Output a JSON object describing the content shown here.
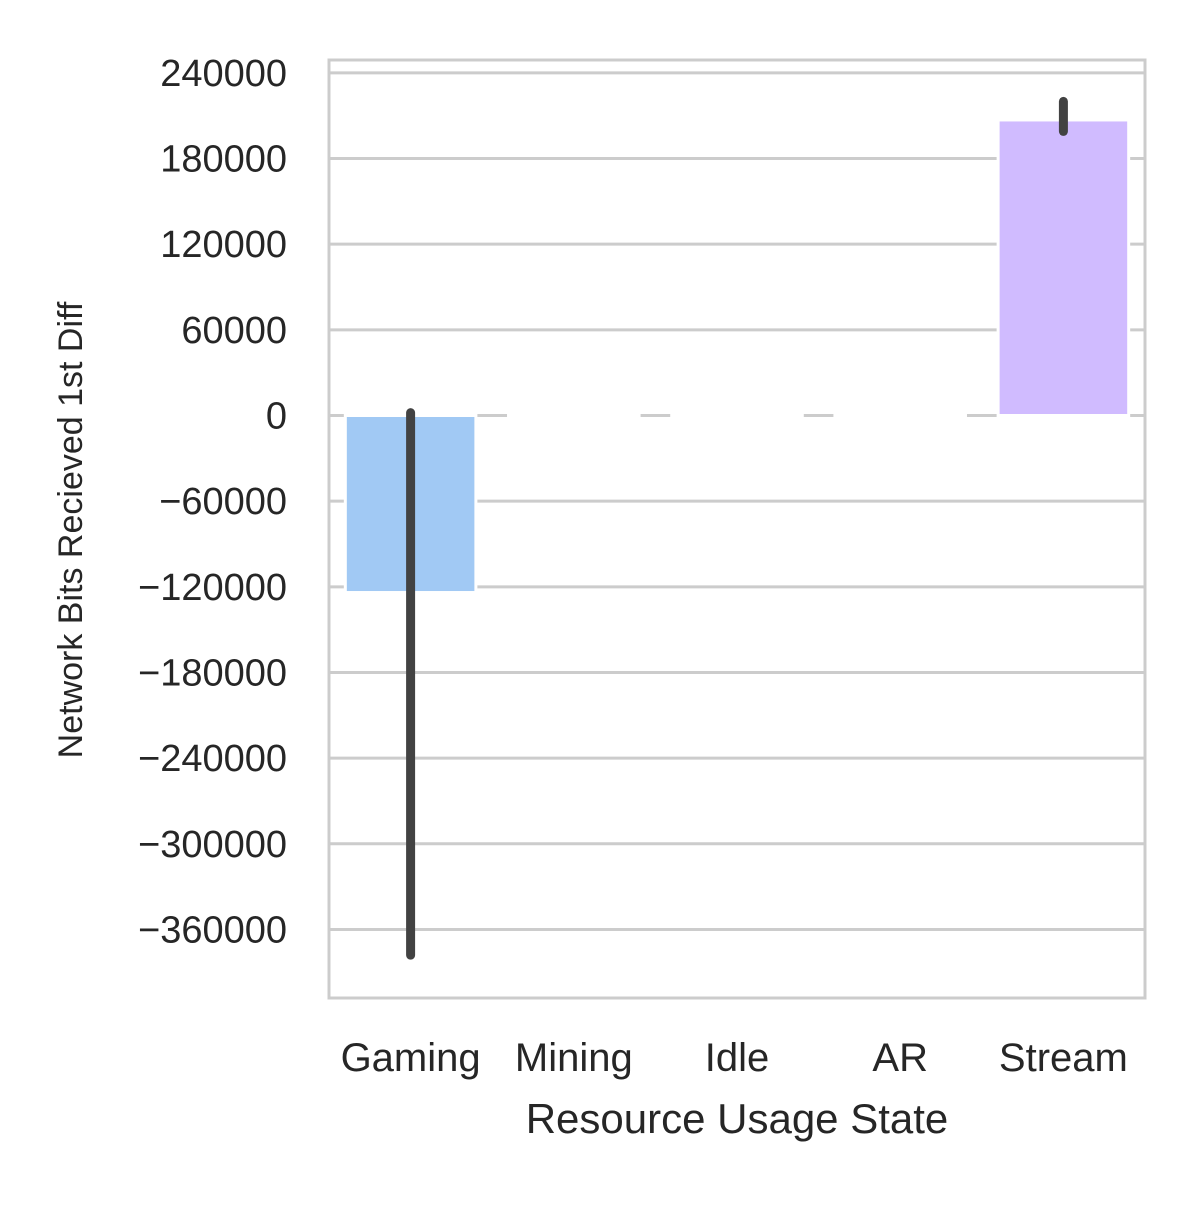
{
  "chart_data": {
    "type": "bar",
    "title": "",
    "xlabel": "Resource Usage State",
    "ylabel": "Network Bits Recieved 1st Diff",
    "categories": [
      "Gaming",
      "Mining",
      "Idle",
      "AR",
      "Stream"
    ],
    "values": [
      -124000,
      0,
      0,
      0,
      207000
    ],
    "error_bars": [
      {
        "low": -378000,
        "high": 2000
      },
      null,
      null,
      null,
      {
        "low": 199000,
        "high": 220000
      }
    ],
    "colors": [
      "#a1c9f4",
      "#8de5a1",
      "#ff9f9b",
      "#fffea3",
      "#d0bbff"
    ],
    "error_color": "#424242",
    "yticks": [
      240000,
      180000,
      120000,
      60000,
      0,
      -60000,
      -120000,
      -180000,
      -240000,
      -300000,
      -360000
    ],
    "ytick_labels": [
      "240000",
      "180000",
      "120000",
      "60000",
      "0",
      "−60000",
      "−120000",
      "−180000",
      "−240000",
      "−300000",
      "−360000"
    ],
    "ylim": [
      -408000,
      249000
    ],
    "grid": true
  }
}
